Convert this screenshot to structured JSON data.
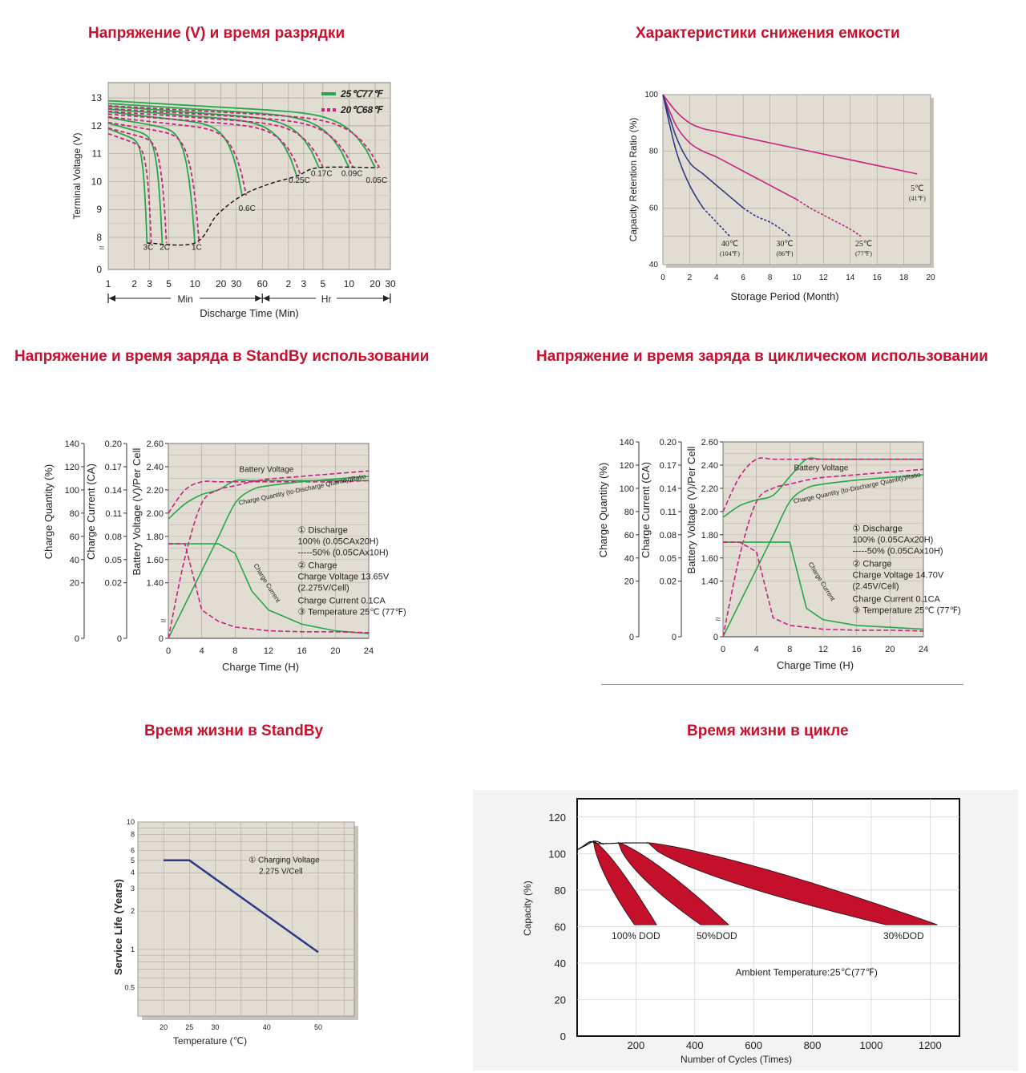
{
  "headings": {
    "discharge": "Напряжение (V) и время разрядки",
    "capacity_fade": "Характеристики снижения емкости",
    "standby_charge": "Напряжение и время заряда в StandBy использовании",
    "cycle_charge": "Напряжение и время заряда в циклическом использовании",
    "standby_life": "Время жизни в StandBy",
    "cycle_life": "Время жизни в цикле"
  },
  "colors": {
    "heading": "#c8102e",
    "plot_bg": "#e2ddd2",
    "green": "#27a64a",
    "magenta": "#c8237f",
    "navy": "#2e3a86",
    "dod_red": "#c4102a"
  },
  "chart_data": [
    {
      "id": "discharge",
      "type": "line",
      "ylabel": "Terminal Voltage (V)",
      "xlabel": "Discharge Time (Min)",
      "yticks": [
        "13",
        "12",
        "11",
        "10",
        "9",
        "8",
        "0"
      ],
      "xticks": [
        "1",
        "2",
        "3",
        "5",
        "10",
        "20",
        "30",
        "60",
        "2",
        "3",
        "5",
        "10",
        "20",
        "30"
      ],
      "axis_segments": [
        "Min",
        "Hr"
      ],
      "legend": [
        {
          "name": "25℃77℉",
          "style": "solid",
          "color": "#27a64a"
        },
        {
          "name": "20℃68℉",
          "style": "dashed",
          "color": "#c8237f"
        }
      ],
      "rate_labels": [
        "3C",
        "2C",
        "1C",
        "0.6C",
        "0.25C",
        "0.17C",
        "0.09C",
        "0.05C"
      ],
      "cutoff_voltage_v": [
        7.8,
        7.8,
        7.8,
        9.5,
        10.2,
        10.5,
        10.5,
        10.5
      ],
      "end_time_min": [
        2.8,
        4.2,
        10,
        35,
        150,
        270,
        600,
        1200
      ],
      "start_voltage_v": [
        11.9,
        12.1,
        12.3,
        12.5,
        12.6,
        12.7,
        12.8,
        12.9
      ]
    },
    {
      "id": "capacity_fade",
      "type": "line",
      "ylabel": "Capacity Retention Ratio (%)",
      "xlabel": "Storage Period (Month)",
      "xticks": [
        "0",
        "2",
        "4",
        "6",
        "8",
        "10",
        "12",
        "14",
        "16",
        "18",
        "20"
      ],
      "yticks": [
        "100",
        "80",
        "60",
        "40"
      ],
      "xlim": [
        0,
        20
      ],
      "ylim": [
        40,
        100
      ],
      "series": [
        {
          "name": "5℃",
          "sub": "(41℉)",
          "color": "#c8237f",
          "x": [
            0,
            1,
            2,
            3,
            4,
            6,
            8,
            10,
            12,
            14,
            16,
            18,
            19
          ],
          "y": [
            100,
            94,
            90,
            88,
            87,
            85,
            83,
            81,
            79,
            77,
            75,
            73,
            72
          ]
        },
        {
          "name": "25℃",
          "sub": "(77℉)",
          "color": "#c8237f",
          "x": [
            0,
            1,
            2,
            3,
            4,
            6,
            8,
            10,
            11,
            12,
            13,
            14,
            14.8
          ],
          "y": [
            100,
            89,
            83,
            80,
            78,
            73,
            68,
            63,
            60,
            57.5,
            55,
            52.5,
            50
          ]
        },
        {
          "name": "30℃",
          "sub": "(86℉)",
          "color": "#2e3a86",
          "x": [
            0,
            1,
            2,
            3,
            4,
            5,
            6,
            7,
            8,
            9,
            9.5
          ],
          "y": [
            100,
            85,
            76,
            72,
            68,
            64,
            60,
            57,
            55,
            52,
            50
          ]
        },
        {
          "name": "40℃",
          "sub": "(104℉)",
          "color": "#2e3a86",
          "x": [
            0,
            1,
            2,
            3,
            4,
            4.5,
            5
          ],
          "y": [
            100,
            80,
            68,
            60,
            55,
            52.5,
            50
          ]
        }
      ]
    },
    {
      "id": "standby_charge",
      "type": "line",
      "y1label": "Charge Quantity (%)",
      "y2label": "Charge Current (CA)",
      "y3label": "Battery Voltage (V)/Per Cell",
      "xlabel": "Charge Time (H)",
      "y1ticks": [
        "140",
        "120",
        "100",
        "80",
        "60",
        "40",
        "20",
        "0"
      ],
      "y2ticks": [
        "0.20",
        "0.17",
        "0.14",
        "0.11",
        "0.08",
        "0.05",
        "0.02",
        "0"
      ],
      "y3ticks": [
        "2.60",
        "2.40",
        "2.20",
        "2.00",
        "1.80",
        "1.60",
        "1.40",
        "0"
      ],
      "xticks": [
        "0",
        "4",
        "8",
        "12",
        "16",
        "20",
        "24"
      ],
      "curve_labels": [
        "Battery Voltage",
        "Charge Quantity (to-Discharge Quantity)Ratio",
        "Charge Current"
      ],
      "notes": [
        "① Discharge",
        "100% (0.05CAx20H)",
        "-----50% (0.05CAx10H)",
        "② Charge",
        "Charge Voltage 13.65V",
        "(2.275V/Cell)",
        "Charge Current 0.1CA",
        "③ Temperature 25℃ (77℉)"
      ],
      "x_hours": [
        0,
        2,
        4,
        6,
        8,
        10,
        12,
        16,
        20,
        24
      ],
      "battery_voltage_100": [
        1.95,
        2.08,
        2.16,
        2.2,
        2.28,
        2.28,
        2.28,
        2.28,
        2.28,
        2.28
      ],
      "battery_voltage_50": [
        2.0,
        2.2,
        2.27,
        2.27,
        2.27,
        2.27,
        2.27,
        2.27,
        2.27,
        2.28
      ],
      "charge_quantity_100": [
        0,
        25,
        50,
        75,
        100,
        110,
        113,
        116,
        118,
        120
      ],
      "charge_quantity_50": [
        0,
        60,
        100,
        110,
        113,
        116,
        118,
        120,
        122,
        124
      ],
      "charge_current_100": [
        0.1,
        0.1,
        0.1,
        0.1,
        0.09,
        0.05,
        0.03,
        0.015,
        0.008,
        0.005
      ],
      "charge_current_50": [
        0.1,
        0.1,
        0.03,
        0.018,
        0.012,
        0.01,
        0.008,
        0.007,
        0.007,
        0.006
      ]
    },
    {
      "id": "cycle_charge",
      "type": "line",
      "y1label": "Charge Quantity (%)",
      "y2label": "Charge Current (CA)",
      "y3label": "Battery Voltage (V)/Per Cell",
      "xlabel": "Charge Time (H)",
      "y1ticks": [
        "140",
        "120",
        "100",
        "80",
        "60",
        "40",
        "20",
        "0"
      ],
      "y2ticks": [
        "0.20",
        "0.17",
        "0.14",
        "0.11",
        "0.08",
        "0.05",
        "0.02",
        "0"
      ],
      "y3ticks": [
        "2.60",
        "2.40",
        "2.20",
        "2.00",
        "1.80",
        "1.60",
        "1.40",
        "0"
      ],
      "xticks": [
        "0",
        "4",
        "8",
        "12",
        "16",
        "20",
        "24"
      ],
      "curve_labels": [
        "Battery Voltage",
        "Charge Quantity (to-Discharge Quantity)Ratio",
        "Charge Current"
      ],
      "notes": [
        "① Discharge",
        "100% (0.05CAx20H)",
        "-----50% (0.05CAx10H)",
        "② Charge",
        "Charge Voltage 14.70V",
        "(2.45V/Cell)",
        "Charge Current 0.1CA",
        "③ Temperature 25℃ (77℉)"
      ],
      "x_hours": [
        0,
        2,
        4,
        6,
        8,
        10,
        12,
        16,
        20,
        24
      ],
      "battery_voltage_100": [
        1.95,
        2.05,
        2.1,
        2.14,
        2.3,
        2.45,
        2.45,
        2.45,
        2.45,
        2.45
      ],
      "battery_voltage_50": [
        2.0,
        2.3,
        2.45,
        2.45,
        2.45,
        2.45,
        2.45,
        2.45,
        2.45,
        2.45
      ],
      "charge_quantity_100": [
        0,
        25,
        50,
        75,
        100,
        110,
        113,
        116,
        118,
        120
      ],
      "charge_quantity_50": [
        0,
        60,
        100,
        110,
        113,
        116,
        118,
        120,
        122,
        124
      ],
      "charge_current_100": [
        0.1,
        0.1,
        0.1,
        0.1,
        0.1,
        0.03,
        0.018,
        0.012,
        0.01,
        0.008
      ],
      "charge_current_50": [
        0.1,
        0.1,
        0.09,
        0.02,
        0.012,
        0.01,
        0.008,
        0.007,
        0.007,
        0.006
      ]
    },
    {
      "id": "standby_life",
      "type": "line",
      "ylabel": "Service Life (Years)",
      "xlabel": "Temperature (℃)",
      "note": [
        "① Charging Voltage",
        "2.275 V/Cell"
      ],
      "xticks": [
        "20",
        "25",
        "30",
        "40",
        "50"
      ],
      "yticks": [
        "10",
        "8",
        "6",
        "5",
        "4",
        "3",
        "2",
        "1",
        "0.5"
      ],
      "yscale": "log",
      "series": [
        {
          "color": "#2e3a86",
          "x": [
            20,
            25,
            50
          ],
          "y": [
            5,
            5,
            0.95
          ]
        }
      ]
    },
    {
      "id": "cycle_life",
      "type": "area",
      "ylabel": "Capacity (%)",
      "xlabel": "Number of Cycles (Times)",
      "xticks": [
        "200",
        "400",
        "600",
        "800",
        "1000",
        "1200"
      ],
      "yticks": [
        "120",
        "100",
        "80",
        "60",
        "40",
        "20",
        "0"
      ],
      "xlim": [
        0,
        1300
      ],
      "ylim": [
        0,
        130
      ],
      "annotation": "Ambient Temperature:25℃(77℉)",
      "bands": [
        {
          "name": "100% DOD",
          "x_end_lo": 195,
          "x_end_hi": 270
        },
        {
          "name": "50%DOD",
          "x_end_lo": 420,
          "x_end_hi": 515
        },
        {
          "name": "30%DOD",
          "x_end_lo": 1050,
          "x_end_hi": 1225
        }
      ]
    }
  ]
}
